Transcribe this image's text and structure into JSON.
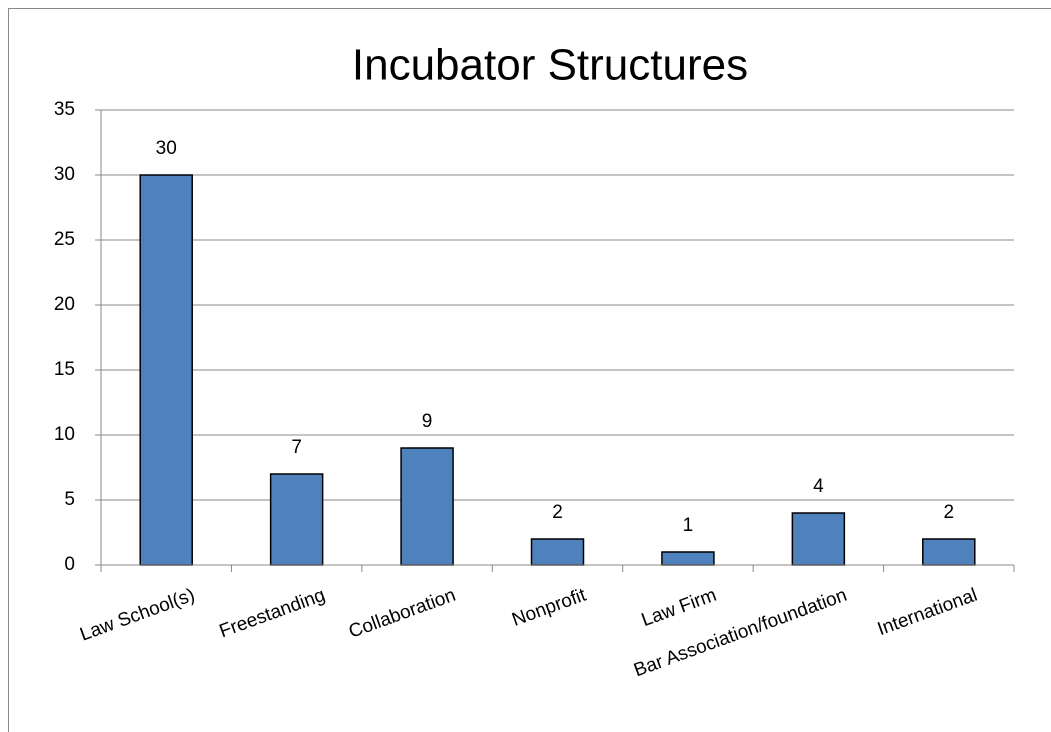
{
  "chart_data": {
    "type": "bar",
    "title": "Incubator Structures",
    "categories": [
      "Law School(s)",
      "Freestanding",
      "Collaboration",
      "Nonprofit",
      "Law Firm",
      "Bar Association/foundation",
      "International"
    ],
    "values": [
      30,
      7,
      9,
      2,
      1,
      4,
      2
    ],
    "color": "#4f81bd",
    "ylim": [
      0,
      35
    ],
    "yticks": [
      0,
      5,
      10,
      15,
      20,
      25,
      30,
      35
    ],
    "grid": true
  }
}
